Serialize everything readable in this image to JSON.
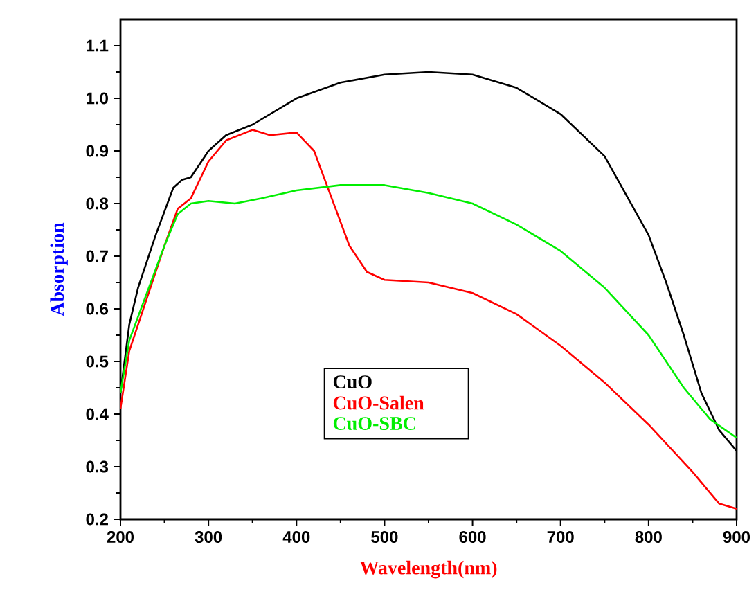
{
  "chart_data": {
    "type": "line",
    "xlabel": "Wavelength(nm)",
    "ylabel": "Absorption",
    "xlim": [
      200,
      900
    ],
    "ylim": [
      0.2,
      1.15
    ],
    "xticks": [
      200,
      300,
      400,
      500,
      600,
      700,
      800,
      900
    ],
    "yticks": [
      0.2,
      0.3,
      0.4,
      0.5,
      0.6,
      0.7,
      0.8,
      0.9,
      {
        "value": 1.0,
        "label": "1.0"
      },
      1.1
    ],
    "legend": "bottom center",
    "grid": false,
    "marker": "none",
    "line_style": "solid",
    "series": [
      {
        "name": "CuO",
        "color": "#000000",
        "x": [
          200,
          210,
          220,
          240,
          260,
          270,
          280,
          300,
          320,
          350,
          400,
          450,
          500,
          550,
          600,
          650,
          700,
          750,
          800,
          820,
          840,
          860,
          880,
          900
        ],
        "values": [
          0.44,
          0.57,
          0.64,
          0.74,
          0.83,
          0.845,
          0.85,
          0.9,
          0.93,
          0.95,
          1.0,
          1.03,
          1.045,
          1.05,
          1.045,
          1.02,
          0.97,
          0.89,
          0.74,
          0.65,
          0.55,
          0.44,
          0.37,
          0.33
        ]
      },
      {
        "name": "CuO-Salen",
        "color": "#ff0000",
        "x": [
          200,
          210,
          230,
          250,
          265,
          280,
          300,
          320,
          350,
          370,
          400,
          420,
          440,
          460,
          480,
          500,
          550,
          600,
          650,
          700,
          750,
          800,
          850,
          880,
          900
        ],
        "values": [
          0.41,
          0.52,
          0.62,
          0.72,
          0.79,
          0.81,
          0.88,
          0.92,
          0.94,
          0.93,
          0.935,
          0.9,
          0.81,
          0.72,
          0.67,
          0.655,
          0.65,
          0.63,
          0.59,
          0.53,
          0.46,
          0.38,
          0.29,
          0.23,
          0.22
        ]
      },
      {
        "name": "CuO-SBC",
        "color": "#00ee00",
        "x": [
          200,
          210,
          230,
          250,
          265,
          280,
          300,
          330,
          360,
          400,
          450,
          500,
          550,
          600,
          650,
          700,
          750,
          800,
          840,
          870,
          900
        ],
        "values": [
          0.44,
          0.54,
          0.63,
          0.72,
          0.78,
          0.8,
          0.805,
          0.8,
          0.81,
          0.825,
          0.835,
          0.835,
          0.82,
          0.8,
          0.76,
          0.71,
          0.64,
          0.55,
          0.45,
          0.39,
          0.355
        ]
      }
    ]
  }
}
